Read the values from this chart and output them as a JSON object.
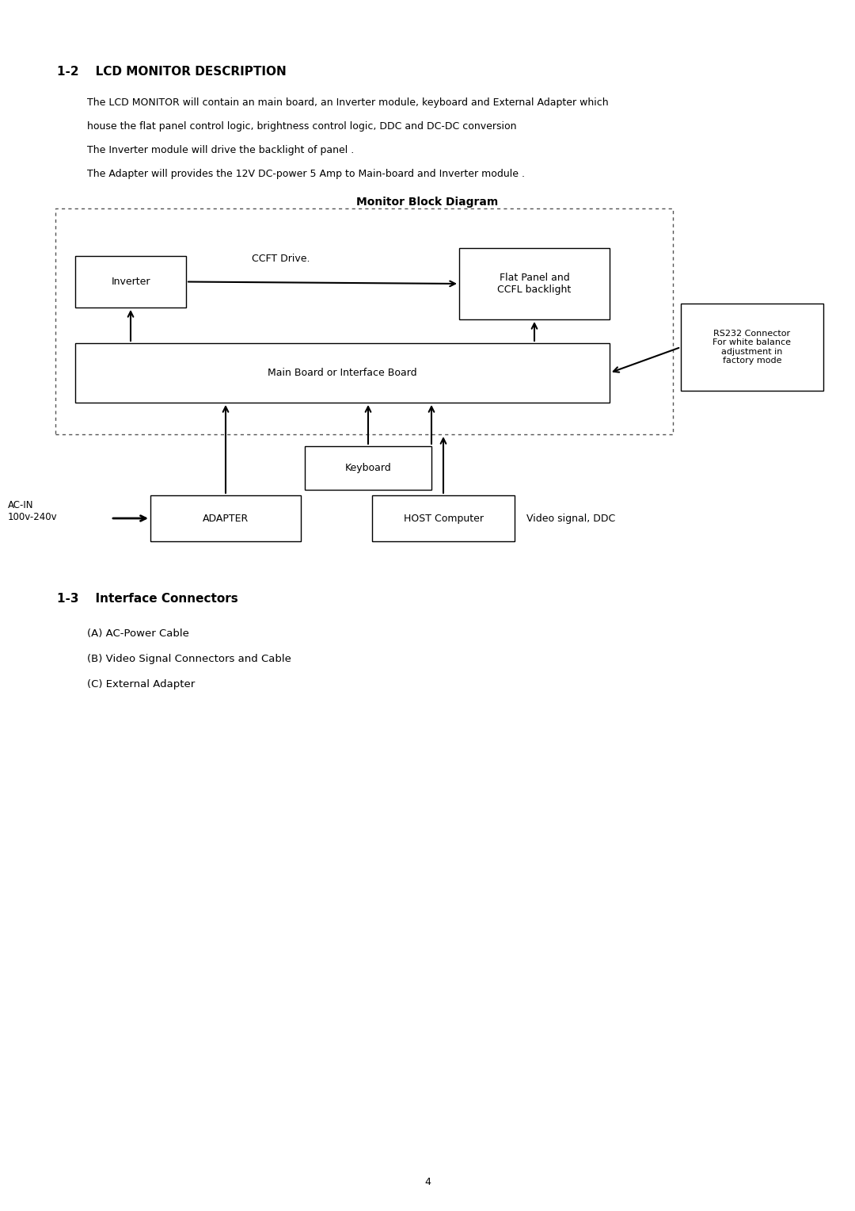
{
  "title": "1-2    LCD MONITOR DESCRIPTION",
  "body_text": [
    "The LCD MONITOR will contain an main board, an Inverter module, keyboard and External Adapter which",
    "house the flat panel control logic, brightness control logic, DDC and DC-DC conversion",
    "The Inverter module will drive the backlight of panel .",
    "The Adapter will provides the 12V DC-power 5 Amp to Main-board and Inverter module ."
  ],
  "diagram_title": "Monitor Block Diagram",
  "section_title": "1-3    Interface Connectors",
  "interface_items": [
    "(A) AC-Power Cable",
    "(B) Video Signal Connectors and Cable",
    "(C) External Adapter"
  ],
  "page_number": "4",
  "bg_color": "#ffffff",
  "text_color": "#000000",
  "box_color": "#000000",
  "dashed_border_color": "#555555"
}
